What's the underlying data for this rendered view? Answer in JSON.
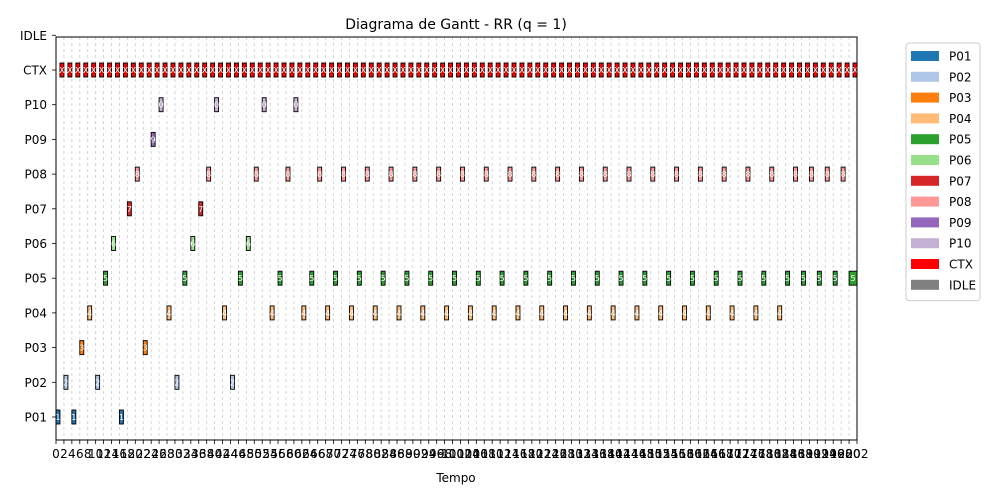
{
  "chart_data": {
    "type": "gantt",
    "title": "Diagrama de Gantt - RR (q = 1)",
    "xlabel": "Tempo",
    "ylabel": "",
    "xlim": [
      0,
      202
    ],
    "grid": true,
    "legend_placement": "outside-right",
    "rows": [
      "P01",
      "P02",
      "P03",
      "P04",
      "P05",
      "P06",
      "P07",
      "P08",
      "P09",
      "P10",
      "CTX",
      "IDLE"
    ],
    "x_ticks": [
      0,
      2,
      4,
      6,
      8,
      10,
      12,
      14,
      16,
      18,
      20,
      22,
      24,
      26,
      28,
      30,
      32,
      34,
      36,
      38,
      40,
      42,
      44,
      46,
      48,
      50,
      52,
      54,
      56,
      58,
      60,
      62,
      64,
      66,
      68,
      70,
      72,
      74,
      76,
      78,
      80,
      82,
      84,
      86,
      88,
      90,
      92,
      94,
      96,
      98,
      100,
      102,
      104,
      106,
      108,
      110,
      112,
      114,
      116,
      118,
      120,
      122,
      124,
      126,
      128,
      130,
      132,
      134,
      136,
      138,
      140,
      142,
      144,
      146,
      148,
      150,
      152,
      154,
      156,
      158,
      160,
      162,
      164,
      166,
      168,
      170,
      172,
      174,
      176,
      178,
      180,
      182,
      184,
      186,
      188,
      190,
      192,
      194,
      196,
      198,
      200,
      202
    ],
    "x_tick_labels": [
      "0",
      "2",
      "4",
      "6",
      "8",
      "10",
      "12",
      "14",
      "16",
      "18",
      "20",
      "22",
      "24",
      "26",
      "28",
      "30",
      "32",
      "34",
      "36",
      "38",
      "40",
      "42",
      "44",
      "46",
      "48",
      "50",
      "52",
      "54",
      "56",
      "58",
      "60",
      "62",
      "64",
      "66",
      "68",
      "70",
      "72",
      "74",
      "76",
      "78",
      "80",
      "82",
      "84",
      "86",
      "88",
      "90",
      "92",
      "94",
      "96",
      "98",
      "100",
      "102",
      "104",
      "106",
      "108",
      "110",
      "112",
      "114",
      "116",
      "118",
      "120",
      "122",
      "124",
      "126",
      "128",
      "130",
      "132",
      "134",
      "136",
      "138",
      "140",
      "142",
      "144",
      "146",
      "148",
      "150",
      "152",
      "154",
      "156",
      "158",
      "160",
      "162",
      "164",
      "166",
      "168",
      "170",
      "172",
      "174",
      "176",
      "178",
      "180",
      "182",
      "184",
      "186",
      "188",
      "190",
      "192",
      "194",
      "196",
      "198",
      "200",
      "202"
    ],
    "series": [
      {
        "name": "P01",
        "color": "#1f77b4",
        "intervals": [
          [
            0,
            1
          ],
          [
            4,
            5
          ],
          [
            16,
            17
          ]
        ]
      },
      {
        "name": "P02",
        "color": "#aec7e8",
        "intervals": [
          [
            2,
            3
          ],
          [
            10,
            11
          ],
          [
            30,
            31
          ],
          [
            44,
            45
          ]
        ]
      },
      {
        "name": "P03",
        "color": "#ff7f0e",
        "intervals": [
          [
            6,
            7
          ],
          [
            22,
            23
          ]
        ]
      },
      {
        "name": "P04",
        "color": "#ffbb78",
        "intervals": [
          [
            8,
            9
          ],
          [
            28,
            29
          ],
          [
            42,
            43
          ],
          [
            54,
            55
          ],
          [
            62,
            63
          ],
          [
            68,
            69
          ],
          [
            74,
            75
          ],
          [
            80,
            81
          ],
          [
            86,
            87
          ],
          [
            92,
            93
          ],
          [
            98,
            99
          ],
          [
            104,
            105
          ],
          [
            110,
            111
          ],
          [
            116,
            117
          ],
          [
            122,
            123
          ],
          [
            128,
            129
          ],
          [
            134,
            135
          ],
          [
            140,
            141
          ],
          [
            146,
            147
          ],
          [
            152,
            153
          ],
          [
            158,
            159
          ],
          [
            164,
            165
          ],
          [
            170,
            171
          ],
          [
            176,
            177
          ],
          [
            182,
            183
          ]
        ]
      },
      {
        "name": "P05",
        "color": "#2ca02c",
        "intervals": [
          [
            12,
            13
          ],
          [
            32,
            33
          ],
          [
            46,
            47
          ],
          [
            56,
            57
          ],
          [
            64,
            65
          ],
          [
            70,
            71
          ],
          [
            76,
            77
          ],
          [
            82,
            83
          ],
          [
            88,
            89
          ],
          [
            94,
            95
          ],
          [
            100,
            101
          ],
          [
            106,
            107
          ],
          [
            112,
            113
          ],
          [
            118,
            119
          ],
          [
            124,
            125
          ],
          [
            130,
            131
          ],
          [
            136,
            137
          ],
          [
            142,
            143
          ],
          [
            148,
            149
          ],
          [
            154,
            155
          ],
          [
            160,
            161
          ],
          [
            166,
            167
          ],
          [
            172,
            173
          ],
          [
            178,
            179
          ],
          [
            184,
            185
          ],
          [
            188,
            189
          ],
          [
            192,
            193
          ],
          [
            196,
            197
          ],
          [
            200,
            202
          ]
        ]
      },
      {
        "name": "P06",
        "color": "#98df8a",
        "intervals": [
          [
            14,
            15
          ],
          [
            34,
            35
          ],
          [
            48,
            49
          ]
        ]
      },
      {
        "name": "P07",
        "color": "#d62728",
        "intervals": [
          [
            18,
            19
          ],
          [
            36,
            37
          ]
        ]
      },
      {
        "name": "P08",
        "color": "#ff9896",
        "intervals": [
          [
            20,
            21
          ],
          [
            38,
            39
          ],
          [
            50,
            51
          ],
          [
            58,
            59
          ],
          [
            66,
            67
          ],
          [
            72,
            73
          ],
          [
            78,
            79
          ],
          [
            84,
            85
          ],
          [
            90,
            91
          ],
          [
            96,
            97
          ],
          [
            102,
            103
          ],
          [
            108,
            109
          ],
          [
            114,
            115
          ],
          [
            120,
            121
          ],
          [
            126,
            127
          ],
          [
            132,
            133
          ],
          [
            138,
            139
          ],
          [
            144,
            145
          ],
          [
            150,
            151
          ],
          [
            156,
            157
          ],
          [
            162,
            163
          ],
          [
            168,
            169
          ],
          [
            174,
            175
          ],
          [
            180,
            181
          ],
          [
            186,
            187
          ],
          [
            190,
            191
          ],
          [
            194,
            195
          ],
          [
            198,
            199
          ]
        ]
      },
      {
        "name": "P09",
        "color": "#9467bd",
        "intervals": [
          [
            24,
            25
          ]
        ]
      },
      {
        "name": "P10",
        "color": "#c5b0d5",
        "intervals": [
          [
            26,
            27
          ],
          [
            40,
            41
          ],
          [
            52,
            53
          ],
          [
            60,
            61
          ]
        ]
      },
      {
        "name": "CTX",
        "color": "#ff0000",
        "intervals": "every_odd_unit_0_to_202"
      },
      {
        "name": "IDLE",
        "color": "#808080",
        "intervals": []
      }
    ]
  }
}
